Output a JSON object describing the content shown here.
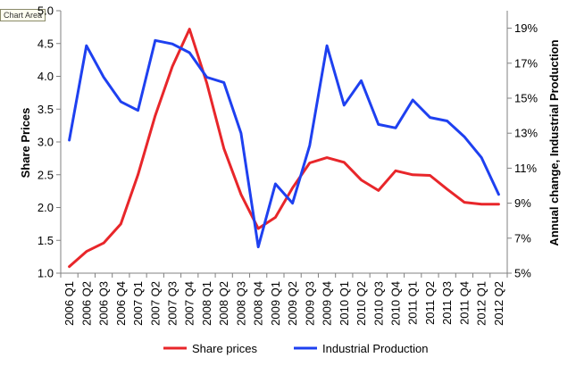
{
  "tooltip": "Chart Area",
  "chart_data": {
    "type": "line",
    "categories": [
      "2006 Q1",
      "2006 Q2",
      "2006 Q3",
      "2006 Q4",
      "2007 Q1",
      "2007 Q2",
      "2007 Q3",
      "2007 Q4",
      "2008 Q1",
      "2008 Q2",
      "2008 Q3",
      "2008 Q4",
      "2009 Q1",
      "2009 Q2",
      "2009 Q3",
      "2009 Q4",
      "2010 Q1",
      "2010 Q2",
      "2010 Q3",
      "2010 Q4",
      "2011 Q1",
      "2011 Q2",
      "2011 Q3",
      "2011 Q4",
      "2012 Q1",
      "2012 Q2"
    ],
    "ylabel": "Share Prices",
    "y2label": "Annual change, Industrial Production",
    "ylim": [
      1.0,
      5.0
    ],
    "y_ticks": [
      "1.0",
      "1.5",
      "2.0",
      "2.5",
      "3.0",
      "3.5",
      "4.0",
      "4.5",
      "5.0"
    ],
    "y2lim": [
      5,
      20
    ],
    "y2_ticks": [
      "5%",
      "7%",
      "9%",
      "11%",
      "13%",
      "15%",
      "17%",
      "19%"
    ],
    "series": [
      {
        "name": "Share prices",
        "axis": "left",
        "color": "#e8262a",
        "values": [
          1.1,
          1.33,
          1.46,
          1.75,
          2.5,
          3.4,
          4.15,
          4.72,
          3.9,
          2.9,
          2.2,
          1.68,
          1.85,
          2.3,
          2.68,
          2.76,
          2.69,
          2.42,
          2.26,
          2.56,
          2.5,
          2.49,
          2.28,
          2.08,
          2.05,
          2.05
        ]
      },
      {
        "name": "Industrial Production",
        "axis": "right",
        "color": "#1e40f0",
        "values": [
          12.6,
          18.0,
          16.2,
          14.8,
          14.3,
          18.3,
          18.1,
          17.6,
          16.2,
          15.9,
          13.0,
          6.5,
          10.1,
          9.0,
          12.3,
          18.0,
          14.6,
          16.0,
          13.5,
          13.3,
          14.9,
          13.9,
          13.7,
          12.8,
          11.6,
          9.5
        ]
      }
    ],
    "legend_position": "bottom",
    "grid": false
  }
}
